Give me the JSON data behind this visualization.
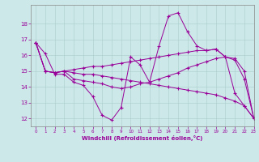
{
  "title": "",
  "xlabel": "Windchill (Refroidissement éolien,°C)",
  "ylabel": "",
  "background_color": "#cce8e8",
  "line_color": "#990099",
  "xlim": [
    -0.5,
    23
  ],
  "ylim": [
    11.5,
    19.2
  ],
  "yticks": [
    12,
    13,
    14,
    15,
    16,
    17,
    18
  ],
  "xticks": [
    0,
    1,
    2,
    3,
    4,
    5,
    6,
    7,
    8,
    9,
    10,
    11,
    12,
    13,
    14,
    15,
    16,
    17,
    18,
    19,
    20,
    21,
    22,
    23
  ],
  "series": [
    [
      16.8,
      16.1,
      14.8,
      14.8,
      14.3,
      14.1,
      13.4,
      12.2,
      11.9,
      12.7,
      15.9,
      15.4,
      14.3,
      16.6,
      18.5,
      18.7,
      17.5,
      16.6,
      16.3,
      16.4,
      15.9,
      13.6,
      12.8,
      12.0
    ],
    [
      16.8,
      15.0,
      14.9,
      15.0,
      15.1,
      15.2,
      15.3,
      15.3,
      15.4,
      15.5,
      15.6,
      15.7,
      15.8,
      15.9,
      16.0,
      16.1,
      16.2,
      16.3,
      16.3,
      16.4,
      15.9,
      15.8,
      15.0,
      12.0
    ],
    [
      16.8,
      15.0,
      14.9,
      15.0,
      14.9,
      14.8,
      14.8,
      14.7,
      14.6,
      14.5,
      14.4,
      14.3,
      14.2,
      14.1,
      14.0,
      13.9,
      13.8,
      13.7,
      13.6,
      13.5,
      13.3,
      13.1,
      12.8,
      12.0
    ],
    [
      16.8,
      15.0,
      14.9,
      15.0,
      14.5,
      14.4,
      14.3,
      14.2,
      14.0,
      13.9,
      14.0,
      14.2,
      14.3,
      14.5,
      14.7,
      14.9,
      15.2,
      15.4,
      15.6,
      15.8,
      15.9,
      15.7,
      14.5,
      12.0
    ]
  ]
}
